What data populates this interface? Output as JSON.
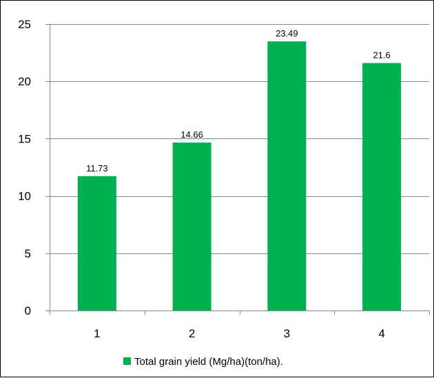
{
  "chart_data": {
    "type": "bar",
    "title": "",
    "xlabel": "",
    "ylabel": "",
    "categories": [
      "1",
      "2",
      "3",
      "4"
    ],
    "series": [
      {
        "name": "Total grain yield (Mg/ha)(ton/ha).",
        "values": [
          11.73,
          14.66,
          23.49,
          21.6
        ],
        "data_labels": [
          "11.73",
          "14.66",
          "23.49",
          "21.6"
        ],
        "color": "#00B050"
      }
    ],
    "ylim": [
      0,
      25
    ],
    "y_ticks": [
      0,
      5,
      10,
      15,
      20,
      25
    ],
    "y_tick_labels": [
      "0",
      "5",
      "10",
      "15",
      "20",
      "25"
    ],
    "grid": true,
    "grid_color": "#868686",
    "legend_position": "bottom"
  }
}
